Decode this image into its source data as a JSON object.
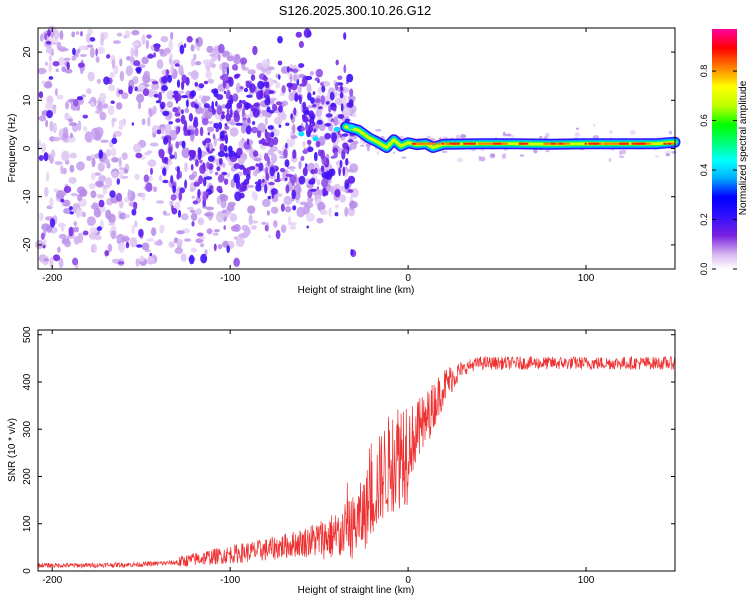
{
  "title": "S126.2025.300.10.26.G12",
  "chart_data": [
    {
      "type": "heatmap",
      "title": "S126.2025.300.10.26.G12",
      "xlabel": "Height of straight line (km)",
      "ylabel": "Frequency (Hz)",
      "xlim": [
        -208,
        150
      ],
      "ylim": [
        -25,
        25
      ],
      "xticks": [
        -200,
        -100,
        0,
        100
      ],
      "yticks": [
        -20,
        -10,
        0,
        10,
        20
      ],
      "colorbar": {
        "label": "Normalized spectral amplitude",
        "range": [
          0,
          0.97
        ],
        "ticks": [
          0.0,
          0.2,
          0.4,
          0.6,
          0.8
        ],
        "colormap": [
          "#ffffff",
          "#d8b8f0",
          "#7a20e0",
          "#3010ff",
          "#0000ff",
          "#00b0ff",
          "#00ffff",
          "#00ff80",
          "#00ff00",
          "#c0ff00",
          "#ffff00",
          "#ff8000",
          "#ff0000",
          "#ff00a0"
        ]
      },
      "ridge": {
        "description_x_range": [
          -30,
          150
        ],
        "frequency_hz": 1.0,
        "path": [
          [
            -35,
            4.5
          ],
          [
            -28,
            3.8
          ],
          [
            -22,
            2.2
          ],
          [
            -18,
            1.5
          ],
          [
            -12,
            0.2
          ],
          [
            -8,
            1.8
          ],
          [
            -4,
            0.5
          ],
          [
            0,
            1.2
          ],
          [
            5,
            0.8
          ],
          [
            10,
            1.0
          ],
          [
            14,
            0.2
          ],
          [
            20,
            0.9
          ],
          [
            40,
            1.0
          ],
          [
            60,
            1.0
          ],
          [
            80,
            0.9
          ],
          [
            100,
            1.0
          ],
          [
            120,
            1.0
          ],
          [
            140,
            1.0
          ],
          [
            150,
            1.3
          ]
        ]
      },
      "noise_cloud": {
        "x_range": [
          -208,
          -30
        ],
        "frequency_spread_hz": [
          -25,
          25
        ],
        "dense_region_x": [
          -140,
          -30
        ],
        "dense_region_freq": [
          -10,
          15
        ]
      }
    },
    {
      "type": "line",
      "xlabel": "Height of straight line (km)",
      "ylabel": "SNR (10 * v/v)",
      "xlim": [
        -208,
        150
      ],
      "ylim": [
        0,
        510
      ],
      "xticks": [
        -200,
        -100,
        0,
        100
      ],
      "yticks": [
        0,
        100,
        200,
        300,
        400,
        500
      ],
      "series": [
        {
          "name": "SNR",
          "color": "#ee3030",
          "trend_x": [
            -208,
            -180,
            -150,
            -130,
            -120,
            -100,
            -80,
            -60,
            -40,
            -30,
            -25,
            -20,
            -15,
            -10,
            -5,
            0,
            5,
            10,
            15,
            20,
            25,
            30,
            35,
            40,
            50,
            60,
            80,
            100,
            120,
            150
          ],
          "trend_y": [
            12,
            12,
            14,
            18,
            25,
            35,
            45,
            60,
            75,
            95,
            120,
            160,
            200,
            230,
            250,
            270,
            290,
            320,
            355,
            390,
            410,
            425,
            435,
            440,
            440,
            440,
            440,
            440,
            440,
            440
          ]
        }
      ]
    }
  ]
}
